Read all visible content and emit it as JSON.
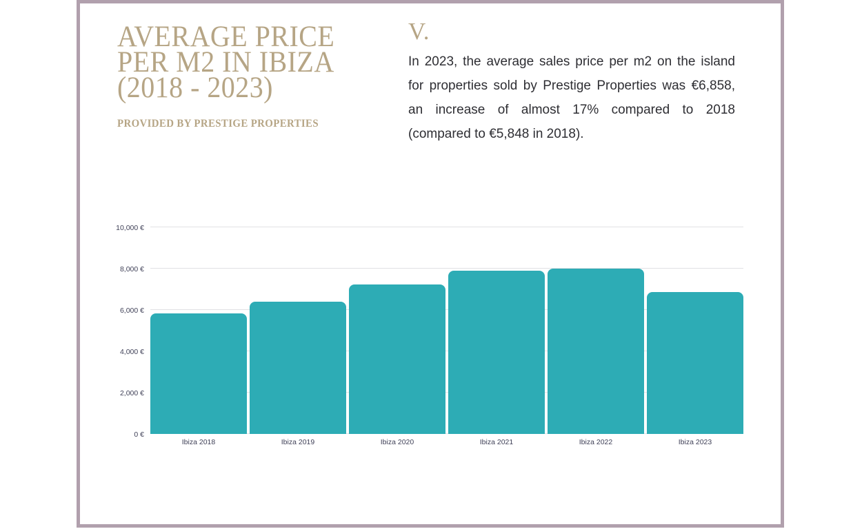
{
  "theme": {
    "gold": "#b6a585",
    "teal": "#2dacb5",
    "border_mauve": "#b1a0ad",
    "text_dark": "#2e2e33",
    "axis_label_color": "#3f4057",
    "gridline_color": "#e1e1e4",
    "card_background": "#ffffff"
  },
  "header": {
    "title_lines": [
      "AVERAGE PRICE",
      "PER M2 IN IBIZA",
      "(2018 - 2023)"
    ],
    "subtitle": "PROVIDED BY PRESTIGE PROPERTIES"
  },
  "section": {
    "marker": "V.",
    "paragraph": "In 2023, the average sales price per m2 on the island for properties sold by Prestige Properties was €6,858, an increase of almost 17% compared to 2018 (compared to €5,848 in 2018)."
  },
  "chart_data": {
    "type": "bar",
    "title": "Average price per m2 in Ibiza (2018 - 2023)",
    "categories": [
      "Ibiza 2018",
      "Ibiza 2019",
      "Ibiza 2020",
      "Ibiza 2021",
      "Ibiza 2022",
      "Ibiza 2023"
    ],
    "values": [
      5848,
      6400,
      7250,
      7900,
      8000,
      6858
    ],
    "xlabel": "",
    "ylabel": "",
    "ylim": [
      0,
      10000
    ],
    "ytick_step": 2000,
    "ytick_labels": [
      "0 €",
      "2,000 €",
      "4,000 €",
      "6,000 €",
      "8,000 €",
      "10,000 €"
    ],
    "grid": true,
    "legend": "none",
    "bar_color": "#2dacb5"
  }
}
